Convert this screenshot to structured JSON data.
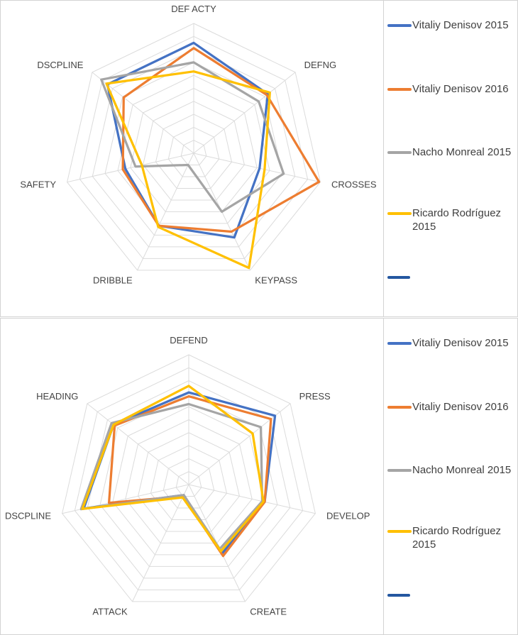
{
  "legend": {
    "items": [
      {
        "label": "Vitaliy Denisov 2015",
        "color": "#4472C4"
      },
      {
        "label": "Vitaliy Denisov 2016",
        "color": "#ED7D31"
      },
      {
        "label": "Nacho Monreal 2015",
        "color": "#A5A5A5"
      },
      {
        "label": "Ricardo Rodríguez 2015",
        "color": "#FFC000"
      },
      {
        "label": "",
        "color": "#2457A0"
      }
    ]
  },
  "colors": {
    "grid": "#DBDBDB",
    "panel_border": "#D3D3D3",
    "label_text": "#444444",
    "legend_text": "#3F3F3F"
  },
  "chart_data": [
    {
      "type": "radar",
      "categories": [
        "DEF ACTY",
        "DEFNG",
        "CROSSES",
        "KEYPASS",
        "DRIBBLE",
        "SAFETY",
        "DSCPLINE"
      ],
      "rings": 10,
      "rmax": 10,
      "grid": true,
      "legend_position": "right",
      "series": [
        {
          "name": "Vitaliy Denisov 2015",
          "color": "#4472C4",
          "values": [
            8.5,
            7.3,
            5.2,
            7.2,
            6.2,
            5.4,
            8.5
          ]
        },
        {
          "name": "Vitaliy Denisov 2016",
          "color": "#ED7D31",
          "values": [
            8.1,
            7.2,
            9.9,
            6.7,
            6.2,
            5.6,
            6.9
          ]
        },
        {
          "name": "Nacho Monreal 2015",
          "color": "#A5A5A5",
          "values": [
            7.0,
            6.4,
            7.1,
            5.0,
            1.0,
            4.6,
            9.1
          ]
        },
        {
          "name": "Ricardo Rodríguez 2015",
          "color": "#FFC000",
          "values": [
            6.3,
            7.5,
            5.6,
            9.8,
            6.3,
            4.1,
            8.6
          ]
        }
      ]
    },
    {
      "type": "radar",
      "categories": [
        "DEFEND",
        "PRESS",
        "DEVELOP",
        "CREATE",
        "ATTACK",
        "DSCPLINE",
        "HEADING"
      ],
      "rings": 10,
      "rmax": 10,
      "grid": true,
      "legend_position": "right",
      "series": [
        {
          "name": "Vitaliy Denisov 2015",
          "color": "#4472C4",
          "values": [
            7.1,
            8.5,
            6.0,
            5.9,
            0.9,
            8.3,
            7.4
          ]
        },
        {
          "name": "Vitaliy Denisov 2016",
          "color": "#ED7D31",
          "values": [
            6.8,
            8.1,
            6.0,
            6.1,
            1.0,
            6.3,
            7.3
          ]
        },
        {
          "name": "Nacho Monreal 2015",
          "color": "#A5A5A5",
          "values": [
            6.2,
            7.1,
            5.8,
            5.5,
            0.9,
            8.5,
            7.6
          ]
        },
        {
          "name": "Ricardo Rodríguez 2015",
          "color": "#FFC000",
          "values": [
            7.6,
            6.3,
            5.9,
            5.7,
            1.1,
            8.4,
            7.4
          ]
        }
      ]
    }
  ]
}
